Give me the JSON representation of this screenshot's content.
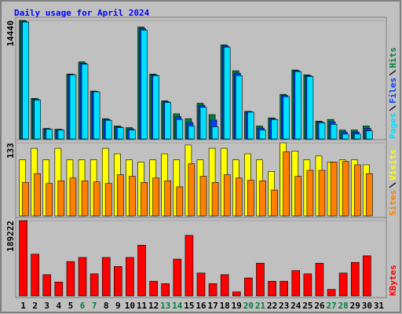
{
  "chart_data": [
    {
      "type": "bar",
      "title": "Daily usage for April 2024",
      "ylim": [
        0,
        14440
      ],
      "yticks": [
        14440
      ],
      "series": [
        {
          "name": "Pages",
          "color": "#00e0ff",
          "values": [
            14240,
            4747,
            1187,
            1088,
            7813,
            9099,
            5736,
            2275,
            1385,
            1088,
            13250,
            7714,
            4451,
            2374,
            1582,
            3857,
            1484,
            11180,
            7714,
            3264,
            1088,
            2374,
            5143,
            8209,
            7615,
            1978,
            1780,
            593,
            593,
            989,
            null
          ]
        },
        {
          "name": "Files",
          "color": "#0040ff",
          "values": [
            14340,
            4850,
            1240,
            1140,
            7860,
            9250,
            5790,
            2370,
            1480,
            1230,
            13450,
            7810,
            4550,
            2700,
            2000,
            4100,
            2300,
            11320,
            8010,
            3310,
            1330,
            2470,
            5290,
            8310,
            7710,
            2080,
            2080,
            840,
            840,
            1290,
            null
          ]
        },
        {
          "name": "Hits",
          "color": "#008040",
          "values": [
            14440,
            4945,
            1286,
            1187,
            7912,
            9396,
            5835,
            2473,
            1582,
            1385,
            13650,
            7912,
            4648,
            3066,
            2473,
            4352,
            2967,
            11470,
            8308,
            3363,
            1582,
            2571,
            5440,
            8407,
            7813,
            2176,
            2374,
            1088,
            1088,
            1582,
            null
          ]
        }
      ]
    },
    {
      "type": "bar",
      "ylim": [
        0,
        133
      ],
      "yticks": [
        133
      ],
      "series": [
        {
          "name": "Sites",
          "color": "#ff8000",
          "values": [
            61,
            77,
            59,
            64,
            69,
            64,
            62,
            59,
            75,
            72,
            61,
            69,
            64,
            53,
            95,
            72,
            61,
            75,
            69,
            65,
            64,
            47,
            117,
            72,
            83,
            83,
            98,
            99,
            93,
            77,
            null
          ]
        },
        {
          "name": "Visits",
          "color": "#ffff00",
          "values": [
            102,
            123,
            102,
            123,
            102,
            102,
            102,
            123,
            113,
            102,
            98,
            102,
            113,
            102,
            129,
            102,
            123,
            123,
            102,
            113,
            102,
            81,
            133,
            118,
            102,
            109,
            98,
            102,
            102,
            93,
            null
          ]
        }
      ]
    },
    {
      "type": "bar",
      "ylim": [
        0,
        189222
      ],
      "yticks": [
        189222
      ],
      "categories": [
        "1",
        "2",
        "3",
        "4",
        "5",
        "6",
        "7",
        "8",
        "9",
        "10",
        "11",
        "12",
        "13",
        "14",
        "15",
        "16",
        "17",
        "18",
        "19",
        "20",
        "21",
        "22",
        "23",
        "24",
        "25",
        "26",
        "27",
        "28",
        "29",
        "30",
        "31"
      ],
      "category_colors": [
        "#000000",
        "#000000",
        "#000000",
        "#000000",
        "#000000",
        "#008040",
        "#008040",
        "#000000",
        "#000000",
        "#000000",
        "#000000",
        "#000000",
        "#008040",
        "#008040",
        "#000000",
        "#000000",
        "#000000",
        "#000000",
        "#000000",
        "#008040",
        "#008040",
        "#000000",
        "#000000",
        "#000000",
        "#000000",
        "#000000",
        "#008040",
        "#008040",
        "#000000",
        "#000000",
        "#000000"
      ],
      "series": [
        {
          "name": "KBytes",
          "color": "#ff0000",
          "values": [
            189222,
            104900,
            53480,
            34970,
            86390,
            96670,
            55530,
            96670,
            74050,
            96670,
            127500,
            37020,
            30850,
            92560,
            152200,
            57590,
            30850,
            53480,
            10280,
            45250,
            82270,
            37020,
            37020,
            63760,
            55530,
            82270,
            16450,
            57590,
            84330,
            100800,
            null
          ]
        }
      ]
    }
  ]
}
